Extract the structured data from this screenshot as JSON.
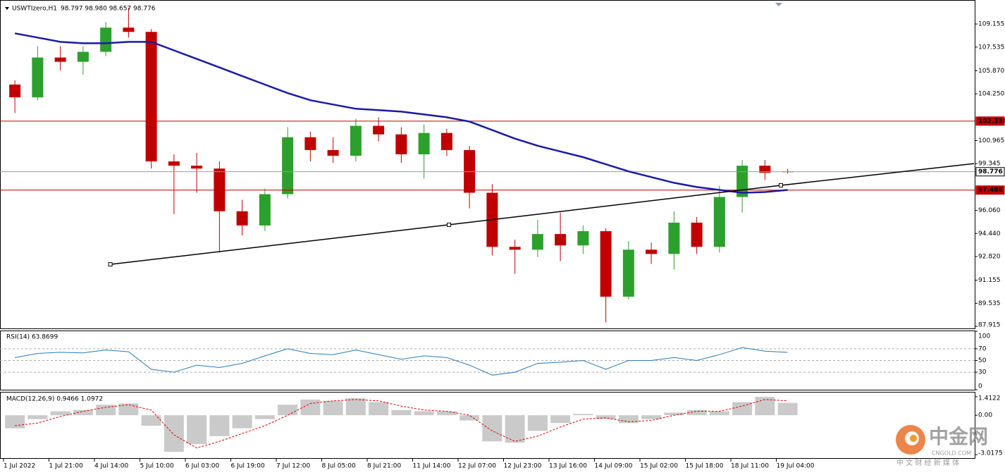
{
  "chart_data": [
    {
      "type": "candlestick",
      "title": "USWTIzero,H1",
      "subtitle": "98.797 98.980 98.657 98.776",
      "categories": [
        "1 Jul 2022",
        null,
        "1 Jul 21:00",
        null,
        "4 Jul 14:00",
        null,
        "5 Jul 10:00",
        null,
        "6 Jul 03:00",
        null,
        "6 Jul 19:00",
        null,
        "7 Jul 12:00",
        null,
        "8 Jul 05:00",
        null,
        "8 Jul 21:00",
        null,
        "11 Jul 14:00",
        null,
        "12 Jul 07:00",
        null,
        "12 Jul 23:00",
        null,
        "13 Jul 16:00",
        null,
        "14 Jul 09:00",
        null,
        "15 Jul 02:00",
        null,
        "15 Jul 18:00",
        null,
        "18 Jul 11:00",
        null,
        "19 Jul 04:00"
      ],
      "open": [
        104.9,
        104.0,
        106.8,
        106.5,
        107.2,
        108.9,
        108.6,
        99.5,
        99.2,
        99.0,
        96.0,
        95.0,
        97.2,
        101.2,
        100.3,
        99.9,
        102.0,
        101.4,
        100.0,
        101.5,
        100.3,
        97.3,
        93.5,
        93.3,
        94.4,
        93.6,
        94.6,
        90.0,
        93.3,
        93.0,
        95.2,
        93.5,
        97.0,
        99.2,
        98.797
      ],
      "high": [
        105.2,
        107.6,
        107.6,
        107.6,
        109.3,
        110.3,
        108.8,
        100.0,
        100.1,
        99.5,
        96.8,
        97.6,
        101.9,
        101.6,
        101.2,
        102.5,
        102.6,
        101.9,
        102.1,
        101.8,
        100.6,
        97.9,
        94.0,
        95.4,
        95.9,
        95.0,
        94.8,
        93.9,
        93.8,
        96.0,
        95.6,
        97.8,
        99.6,
        99.6,
        98.98
      ],
      "low": [
        102.9,
        103.8,
        105.9,
        105.6,
        106.9,
        108.2,
        99.0,
        95.8,
        97.3,
        93.1,
        94.3,
        94.6,
        96.9,
        99.5,
        99.4,
        99.5,
        100.9,
        99.4,
        98.3,
        99.9,
        96.2,
        92.9,
        91.6,
        92.8,
        92.5,
        93.0,
        88.2,
        89.8,
        92.3,
        91.9,
        93.0,
        93.1,
        95.9,
        98.2,
        98.657
      ],
      "close": [
        104.0,
        106.8,
        106.5,
        107.2,
        108.9,
        108.6,
        99.5,
        99.2,
        99.0,
        96.0,
        95.0,
        97.2,
        101.2,
        100.3,
        99.9,
        102.0,
        101.4,
        100.0,
        101.5,
        100.3,
        97.3,
        93.5,
        93.3,
        94.4,
        93.6,
        94.6,
        90.0,
        93.3,
        93.0,
        95.2,
        93.5,
        97.0,
        99.2,
        98.7,
        98.776
      ],
      "up_color": "#2ca02c",
      "down_color": "#c00000",
      "moving_average": {
        "color": "#1a1aa6",
        "values": [
          108.5,
          108.2,
          107.9,
          107.8,
          107.8,
          107.9,
          107.9,
          107.3,
          106.7,
          106.1,
          105.5,
          104.9,
          104.3,
          103.8,
          103.5,
          103.2,
          103.1,
          103.0,
          102.8,
          102.6,
          102.3,
          101.7,
          101.1,
          100.6,
          100.2,
          99.8,
          99.3,
          98.8,
          98.4,
          98.0,
          97.7,
          97.5,
          97.3,
          97.35,
          97.5
        ]
      },
      "trendline": {
        "color": "#000000",
        "x": [
          4.2,
          19.1,
          33.7,
          42.2
        ],
        "values": [
          92.27,
          95.05,
          97.82,
          99.35
        ]
      },
      "levels": [
        {
          "value": 102.334,
          "color": "#c00000"
        },
        {
          "value": 97.488,
          "color": "#c00000"
        },
        {
          "value": 98.776,
          "color": "#9a9a9a"
        }
      ],
      "ylim": [
        87.77,
        110.84
      ],
      "yticks": [
        109.155,
        {
          "value": 107.535,
          "label": "107.535"
        },
        {
          "value": 105.87,
          "label": "105.870"
        },
        {
          "value": 104.25,
          "label": "104.250"
        },
        {
          "value": 100.965,
          "label": "100.965"
        },
        99.345,
        {
          "value": 96.06,
          "label": "96.060"
        },
        {
          "value": 94.44,
          "label": "94.440"
        },
        {
          "value": 92.82,
          "label": "92.820"
        },
        91.155,
        89.535,
        87.915
      ]
    },
    {
      "type": "line",
      "title": "RSI(14) 63.8699",
      "color": "#2a7ab8",
      "values": [
        55,
        62,
        64,
        63,
        68,
        65,
        35,
        30,
        42,
        38,
        45,
        58,
        70,
        62,
        60,
        68,
        60,
        52,
        58,
        55,
        42,
        25,
        30,
        45,
        47,
        50,
        35,
        50,
        50,
        55,
        50,
        60,
        72,
        66,
        63.87
      ],
      "ylim": [
        0,
        100
      ],
      "yticks": [
        0,
        30,
        50,
        70,
        100
      ],
      "grid": true
    },
    {
      "type": "bar",
      "title": "MACD(12,26,9) 0.9466 1.0972",
      "color": "#b4b4b4",
      "values": [
        -1.0,
        -0.3,
        0.3,
        0.4,
        0.8,
        0.9,
        -0.8,
        -2.8,
        -2.2,
        -1.6,
        -1.0,
        -0.3,
        0.8,
        1.2,
        1.1,
        1.3,
        1.0,
        0.4,
        0.3,
        0.3,
        -0.4,
        -2.0,
        -2.1,
        -1.2,
        -0.6,
        0.1,
        -0.3,
        -0.6,
        -0.3,
        0.2,
        0.4,
        0.3,
        1.0,
        1.4,
        0.9466
      ],
      "signal": {
        "color": "#e00000",
        "values": [
          -0.8,
          -0.6,
          -0.1,
          0.3,
          0.6,
          0.8,
          0.4,
          -1.5,
          -2.5,
          -2.0,
          -1.4,
          -0.8,
          0.0,
          0.9,
          1.1,
          1.2,
          1.1,
          0.7,
          0.4,
          0.3,
          0.0,
          -1.2,
          -2.0,
          -1.6,
          -0.9,
          -0.3,
          -0.2,
          -0.5,
          -0.4,
          0.0,
          0.3,
          0.3,
          0.7,
          1.2,
          1.0972
        ]
      },
      "ylim": [
        -3.17,
        1.68
      ],
      "yticks": [
        1.4122,
        {
          "value": 0,
          "label": "0.00"
        },
        -3.0175
      ]
    }
  ],
  "watermark": {
    "name": "中金网",
    "site": "CNGOLD.COM",
    "tagline": "中 文 财 经 新 媒 体"
  }
}
